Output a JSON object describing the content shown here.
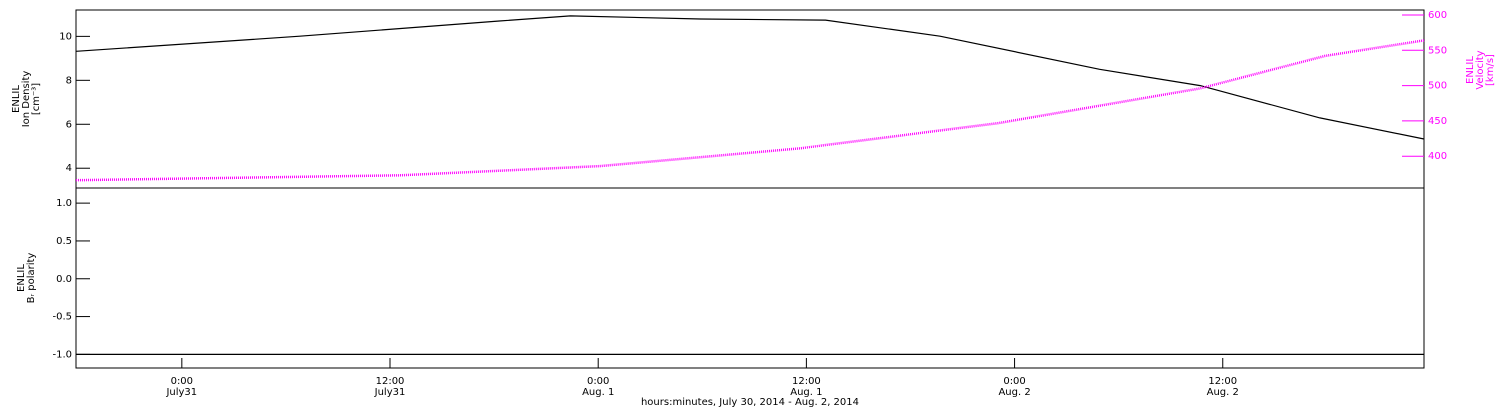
{
  "chart_data": [
    {
      "type": "line",
      "xlim": [
        17.9,
        95.6
      ],
      "ylim": [
        3.1,
        11.2
      ],
      "yticks": [
        4,
        6,
        8,
        10
      ],
      "y2lim": [
        355,
        607
      ],
      "y2ticks": [
        400,
        450,
        500,
        550,
        600
      ],
      "ylabel": [
        "ENLIL",
        "Ion Density",
        "[cm⁻³]"
      ],
      "y2label": [
        "ENLIL",
        "Velocity",
        "[km/s]"
      ],
      "y2color": "#ff00ff",
      "series": [
        {
          "name": "Ion Density",
          "color": "#000000",
          "x": [
            17.9,
            30.8,
            42.3,
            46.4,
            53.9,
            61.1,
            67.7,
            76.9,
            82.7,
            89.6,
            95.6
          ],
          "values": [
            9.32,
            10.01,
            10.7,
            10.93,
            10.79,
            10.74,
            10.01,
            8.5,
            7.76,
            6.29,
            5.33
          ]
        },
        {
          "name": "Velocity",
          "color": "#ff00ff",
          "axis": "y2",
          "x": [
            17.9,
            36.6,
            48.1,
            59.6,
            71.1,
            82.7,
            89.9,
            95.6
          ],
          "values": [
            366,
            373,
            386,
            411,
            447,
            496,
            542,
            564
          ]
        }
      ]
    },
    {
      "type": "line",
      "xlim": [
        17.9,
        95.6
      ],
      "ylim": [
        -1.18,
        1.2
      ],
      "yticks": [
        {
          "value": 1,
          "label": "1.0"
        },
        {
          "value": 0.5,
          "label": "0.5"
        },
        {
          "value": 0,
          "label": "0.0"
        },
        {
          "value": -0.5,
          "label": "-0.5"
        },
        {
          "value": -1,
          "label": "-1.0"
        }
      ],
      "ylabel": [
        "ENLIL",
        "Bᵣ polarity"
      ],
      "series": [
        {
          "name": "Br polarity",
          "color": "#000000",
          "x": [
            17.9,
            95.6
          ],
          "values": [
            -1,
            -1
          ]
        }
      ],
      "xticks": [
        {
          "value": 24,
          "label": "0:00",
          "date": "July31"
        },
        {
          "value": 36,
          "label": "12:00",
          "date": "July31"
        },
        {
          "value": 48,
          "label": "0:00",
          "date": "Aug. 1"
        },
        {
          "value": 60,
          "label": "12:00",
          "date": "Aug. 1"
        },
        {
          "value": 72,
          "label": "0:00",
          "date": "Aug. 2"
        },
        {
          "value": 84,
          "label": "12:00",
          "date": "Aug. 2"
        }
      ],
      "xlabel": "hours:minutes, July 30, 2014 - Aug.  2, 2014"
    }
  ]
}
